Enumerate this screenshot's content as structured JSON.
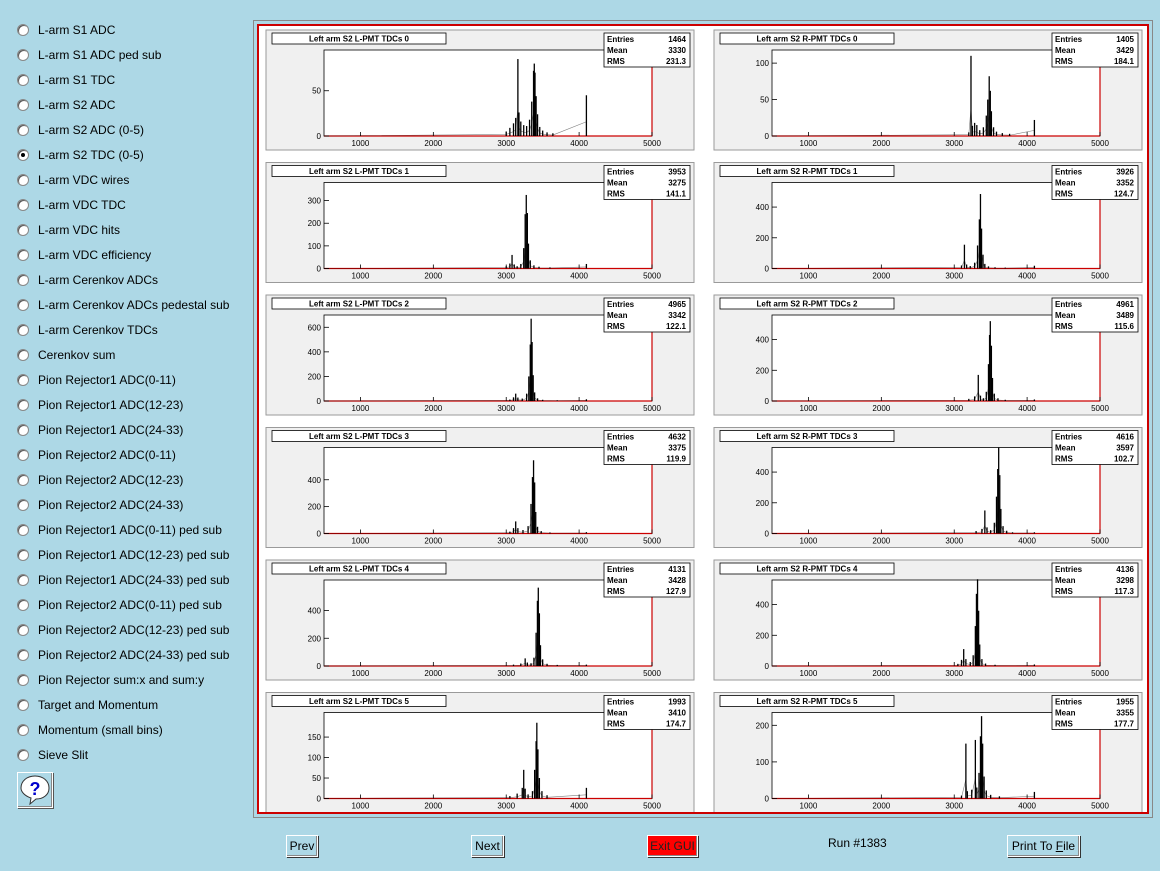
{
  "sidebar": {
    "items": [
      {
        "label": "L-arm S1 ADC",
        "checked": false
      },
      {
        "label": "L-arm S1 ADC ped sub",
        "checked": false
      },
      {
        "label": "L-arm S1 TDC",
        "checked": false
      },
      {
        "label": "L-arm S2 ADC",
        "checked": false
      },
      {
        "label": "L-arm S2 ADC (0-5)",
        "checked": false
      },
      {
        "label": "L-arm S2 TDC (0-5)",
        "checked": true
      },
      {
        "label": "L-arm VDC wires",
        "checked": false
      },
      {
        "label": "L-arm VDC TDC",
        "checked": false
      },
      {
        "label": "L-arm VDC hits",
        "checked": false
      },
      {
        "label": "L-arm VDC efficiency",
        "checked": false
      },
      {
        "label": "L-arm Cerenkov ADCs",
        "checked": false
      },
      {
        "label": "L-arm Cerenkov ADCs pedestal sub",
        "checked": false
      },
      {
        "label": "L-arm Cerenkov TDCs",
        "checked": false
      },
      {
        "label": "Cerenkov sum",
        "checked": false
      },
      {
        "label": "Pion Rejector1 ADC(0-11)",
        "checked": false
      },
      {
        "label": "Pion Rejector1 ADC(12-23)",
        "checked": false
      },
      {
        "label": "Pion Rejector1 ADC(24-33)",
        "checked": false
      },
      {
        "label": "Pion Rejector2 ADC(0-11)",
        "checked": false
      },
      {
        "label": "Pion Rejector2 ADC(12-23)",
        "checked": false
      },
      {
        "label": "Pion Rejector2 ADC(24-33)",
        "checked": false
      },
      {
        "label": "Pion Rejector1 ADC(0-11) ped sub",
        "checked": false
      },
      {
        "label": "Pion Rejector1 ADC(12-23) ped sub",
        "checked": false
      },
      {
        "label": "Pion Rejector1 ADC(24-33) ped sub",
        "checked": false
      },
      {
        "label": "Pion Rejector2 ADC(0-11) ped sub",
        "checked": false
      },
      {
        "label": "Pion Rejector2 ADC(12-23) ped sub",
        "checked": false
      },
      {
        "label": "Pion Rejector2 ADC(24-33) ped sub",
        "checked": false
      },
      {
        "label": "Pion Rejector sum:x and sum:y",
        "checked": false
      },
      {
        "label": "Target and Momentum",
        "checked": false
      },
      {
        "label": "Momentum (small bins)",
        "checked": false
      },
      {
        "label": "Sieve Slit",
        "checked": false
      }
    ],
    "help_icon": "question-mark-icon"
  },
  "buttons": {
    "prev": "Prev",
    "next": "Next",
    "exit": "Exit GUI",
    "print_prefix": "Print To ",
    "print_accel": "F",
    "print_suffix": "ile"
  },
  "status": {
    "run": "Run #1383"
  },
  "colors": {
    "background": "#add8e6",
    "canvas_border": "#cc0000",
    "exit_button": "#ff0000",
    "pad": "#f0f0f0"
  },
  "stats_labels": {
    "entries": "Entries",
    "mean": "Mean",
    "rms": "RMS"
  },
  "chart_data": [
    {
      "type": "bar",
      "title": "Left arm S2 L-PMT TDCs 0",
      "x_range": [
        500,
        5000
      ],
      "x_ticks": [
        1000,
        2000,
        3000,
        4000,
        5000
      ],
      "y_ticks": [
        0,
        50
      ],
      "ymax": 95,
      "entries": "1464",
      "mean": "3330",
      "rms": "231.3",
      "bins": [
        [
          3000,
          5
        ],
        [
          3050,
          9
        ],
        [
          3100,
          14
        ],
        [
          3130,
          20
        ],
        [
          3160,
          85
        ],
        [
          3175,
          26
        ],
        [
          3200,
          16
        ],
        [
          3240,
          12
        ],
        [
          3280,
          11
        ],
        [
          3320,
          18
        ],
        [
          3350,
          38
        ],
        [
          3375,
          72
        ],
        [
          3385,
          80
        ],
        [
          3395,
          70
        ],
        [
          3410,
          44
        ],
        [
          3430,
          24
        ],
        [
          3460,
          10
        ],
        [
          3500,
          6
        ],
        [
          3560,
          4
        ],
        [
          3640,
          3
        ],
        [
          4100,
          45
        ]
      ]
    },
    {
      "type": "bar",
      "title": "Left arm S2 R-PMT TDCs 0",
      "x_range": [
        500,
        5000
      ],
      "x_ticks": [
        1000,
        2000,
        3000,
        4000,
        5000
      ],
      "y_ticks": [
        0,
        50,
        100
      ],
      "ymax": 118,
      "entries": "1405",
      "mean": "3429",
      "rms": "184.1",
      "bins": [
        [
          3200,
          5
        ],
        [
          3230,
          110
        ],
        [
          3250,
          14
        ],
        [
          3280,
          18
        ],
        [
          3310,
          15
        ],
        [
          3350,
          8
        ],
        [
          3400,
          12
        ],
        [
          3440,
          28
        ],
        [
          3460,
          50
        ],
        [
          3480,
          82
        ],
        [
          3495,
          62
        ],
        [
          3510,
          34
        ],
        [
          3540,
          12
        ],
        [
          3580,
          6
        ],
        [
          3660,
          4
        ],
        [
          3760,
          3
        ],
        [
          4100,
          22
        ]
      ]
    },
    {
      "type": "bar",
      "title": "Left arm S2 L-PMT TDCs 1",
      "x_range": [
        500,
        5000
      ],
      "x_ticks": [
        1000,
        2000,
        3000,
        4000,
        5000
      ],
      "y_ticks": [
        0,
        100,
        200,
        300
      ],
      "ymax": 380,
      "entries": "3953",
      "mean": "3275",
      "rms": "141.1",
      "bins": [
        [
          3000,
          10
        ],
        [
          3050,
          22
        ],
        [
          3080,
          60
        ],
        [
          3110,
          18
        ],
        [
          3150,
          10
        ],
        [
          3200,
          20
        ],
        [
          3240,
          90
        ],
        [
          3260,
          240
        ],
        [
          3275,
          325
        ],
        [
          3290,
          245
        ],
        [
          3305,
          110
        ],
        [
          3330,
          36
        ],
        [
          3380,
          14
        ],
        [
          3450,
          8
        ],
        [
          3600,
          5
        ],
        [
          4100,
          20
        ]
      ]
    },
    {
      "type": "bar",
      "title": "Left arm S2 R-PMT TDCs 1",
      "x_range": [
        500,
        5000
      ],
      "x_ticks": [
        1000,
        2000,
        3000,
        4000,
        5000
      ],
      "y_ticks": [
        0,
        200,
        400
      ],
      "ymax": 560,
      "entries": "3926",
      "mean": "3352",
      "rms": "124.7",
      "bins": [
        [
          3100,
          20
        ],
        [
          3140,
          155
        ],
        [
          3170,
          26
        ],
        [
          3220,
          16
        ],
        [
          3280,
          38
        ],
        [
          3320,
          150
        ],
        [
          3345,
          320
        ],
        [
          3360,
          485
        ],
        [
          3375,
          260
        ],
        [
          3395,
          90
        ],
        [
          3420,
          30
        ],
        [
          3470,
          14
        ],
        [
          3560,
          8
        ],
        [
          3700,
          6
        ],
        [
          4100,
          18
        ]
      ]
    },
    {
      "type": "bar",
      "title": "Left arm S2 L-PMT TDCs 2",
      "x_range": [
        500,
        5000
      ],
      "x_ticks": [
        1000,
        2000,
        3000,
        4000,
        5000
      ],
      "y_ticks": [
        0,
        200,
        400,
        600
      ],
      "ymax": 700,
      "entries": "4965",
      "mean": "3342",
      "rms": "122.1",
      "bins": [
        [
          3050,
          12
        ],
        [
          3100,
          30
        ],
        [
          3130,
          60
        ],
        [
          3160,
          28
        ],
        [
          3220,
          20
        ],
        [
          3280,
          60
        ],
        [
          3310,
          200
        ],
        [
          3330,
          460
        ],
        [
          3342,
          670
        ],
        [
          3355,
          480
        ],
        [
          3370,
          210
        ],
        [
          3390,
          70
        ],
        [
          3430,
          22
        ],
        [
          3500,
          10
        ],
        [
          3700,
          6
        ],
        [
          4100,
          14
        ]
      ]
    },
    {
      "type": "bar",
      "title": "Left arm S2 R-PMT TDCs 2",
      "x_range": [
        500,
        5000
      ],
      "x_ticks": [
        1000,
        2000,
        3000,
        4000,
        5000
      ],
      "y_ticks": [
        0,
        200,
        400
      ],
      "ymax": 560,
      "entries": "4961",
      "mean": "3489",
      "rms": "115.6",
      "bins": [
        [
          3200,
          14
        ],
        [
          3280,
          30
        ],
        [
          3330,
          170
        ],
        [
          3360,
          35
        ],
        [
          3400,
          18
        ],
        [
          3440,
          60
        ],
        [
          3470,
          240
        ],
        [
          3485,
          430
        ],
        [
          3495,
          520
        ],
        [
          3510,
          360
        ],
        [
          3525,
          150
        ],
        [
          3550,
          48
        ],
        [
          3600,
          18
        ],
        [
          3700,
          8
        ],
        [
          4100,
          10
        ]
      ]
    },
    {
      "type": "bar",
      "title": "Left arm S2 L-PMT TDCs 3",
      "x_range": [
        500,
        5000
      ],
      "x_ticks": [
        1000,
        2000,
        3000,
        4000,
        5000
      ],
      "y_ticks": [
        0,
        200,
        400
      ],
      "ymax": 640,
      "entries": "4632",
      "mean": "3375",
      "rms": "119.9",
      "bins": [
        [
          3050,
          14
        ],
        [
          3100,
          40
        ],
        [
          3130,
          90
        ],
        [
          3160,
          40
        ],
        [
          3230,
          26
        ],
        [
          3300,
          55
        ],
        [
          3340,
          220
        ],
        [
          3360,
          420
        ],
        [
          3375,
          545
        ],
        [
          3390,
          380
        ],
        [
          3405,
          160
        ],
        [
          3430,
          50
        ],
        [
          3480,
          18
        ],
        [
          3600,
          8
        ],
        [
          4100,
          10
        ]
      ]
    },
    {
      "type": "bar",
      "title": "Left arm S2 R-PMT TDCs 3",
      "x_range": [
        500,
        5000
      ],
      "x_ticks": [
        1000,
        2000,
        3000,
        4000,
        5000
      ],
      "y_ticks": [
        0,
        200,
        400
      ],
      "ymax": 560,
      "entries": "4616",
      "mean": "3597",
      "rms": "102.7",
      "bins": [
        [
          3300,
          16
        ],
        [
          3380,
          30
        ],
        [
          3420,
          150
        ],
        [
          3450,
          40
        ],
        [
          3500,
          22
        ],
        [
          3550,
          70
        ],
        [
          3580,
          240
        ],
        [
          3597,
          420
        ],
        [
          3610,
          560
        ],
        [
          3625,
          380
        ],
        [
          3640,
          160
        ],
        [
          3670,
          48
        ],
        [
          3720,
          18
        ],
        [
          3800,
          8
        ],
        [
          4100,
          8
        ]
      ]
    },
    {
      "type": "bar",
      "title": "Left arm S2 L-PMT TDCs 4",
      "x_range": [
        500,
        5000
      ],
      "x_ticks": [
        1000,
        2000,
        3000,
        4000,
        5000
      ],
      "y_ticks": [
        0,
        200,
        400
      ],
      "ymax": 620,
      "entries": "4131",
      "mean": "3428",
      "rms": "127.9",
      "bins": [
        [
          3100,
          10
        ],
        [
          3200,
          18
        ],
        [
          3260,
          55
        ],
        [
          3290,
          25
        ],
        [
          3340,
          20
        ],
        [
          3380,
          60
        ],
        [
          3410,
          240
        ],
        [
          3428,
          470
        ],
        [
          3440,
          565
        ],
        [
          3455,
          380
        ],
        [
          3470,
          150
        ],
        [
          3500,
          48
        ],
        [
          3560,
          16
        ],
        [
          3700,
          8
        ],
        [
          4100,
          10
        ]
      ]
    },
    {
      "type": "bar",
      "title": "Left arm S2 R-PMT TDCs 4",
      "x_range": [
        500,
        5000
      ],
      "x_ticks": [
        1000,
        2000,
        3000,
        4000,
        5000
      ],
      "y_ticks": [
        0,
        200,
        400
      ],
      "ymax": 560,
      "entries": "4136",
      "mean": "3298",
      "rms": "117.3",
      "bins": [
        [
          3050,
          14
        ],
        [
          3100,
          40
        ],
        [
          3130,
          110
        ],
        [
          3160,
          45
        ],
        [
          3220,
          26
        ],
        [
          3260,
          70
        ],
        [
          3290,
          260
        ],
        [
          3305,
          470
        ],
        [
          3320,
          565
        ],
        [
          3335,
          360
        ],
        [
          3350,
          140
        ],
        [
          3380,
          45
        ],
        [
          3430,
          16
        ],
        [
          3560,
          8
        ],
        [
          4100,
          10
        ]
      ]
    },
    {
      "type": "bar",
      "title": "Left arm S2 L-PMT TDCs 5",
      "x_range": [
        500,
        5000
      ],
      "x_ticks": [
        1000,
        2000,
        3000,
        4000,
        5000
      ],
      "y_ticks": [
        0,
        50,
        100,
        150
      ],
      "ymax": 210,
      "entries": "1993",
      "mean": "3410",
      "rms": "174.7",
      "bins": [
        [
          3050,
          6
        ],
        [
          3150,
          12
        ],
        [
          3220,
          26
        ],
        [
          3240,
          70
        ],
        [
          3260,
          24
        ],
        [
          3300,
          10
        ],
        [
          3360,
          18
        ],
        [
          3390,
          70
        ],
        [
          3410,
          140
        ],
        [
          3420,
          185
        ],
        [
          3435,
          120
        ],
        [
          3455,
          50
        ],
        [
          3490,
          18
        ],
        [
          3560,
          8
        ],
        [
          4100,
          26
        ]
      ]
    },
    {
      "type": "bar",
      "title": "Left arm S2 R-PMT TDCs 5",
      "x_range": [
        500,
        5000
      ],
      "x_ticks": [
        1000,
        2000,
        3000,
        4000,
        5000
      ],
      "y_ticks": [
        0,
        100,
        200
      ],
      "ymax": 235,
      "entries": "1955",
      "mean": "3355",
      "rms": "177.7",
      "bins": [
        [
          3100,
          8
        ],
        [
          3160,
          150
        ],
        [
          3180,
          20
        ],
        [
          3240,
          24
        ],
        [
          3290,
          160
        ],
        [
          3310,
          30
        ],
        [
          3340,
          70
        ],
        [
          3360,
          170
        ],
        [
          3375,
          225
        ],
        [
          3390,
          150
        ],
        [
          3410,
          60
        ],
        [
          3440,
          22
        ],
        [
          3500,
          10
        ],
        [
          3620,
          6
        ],
        [
          4100,
          18
        ]
      ]
    }
  ]
}
